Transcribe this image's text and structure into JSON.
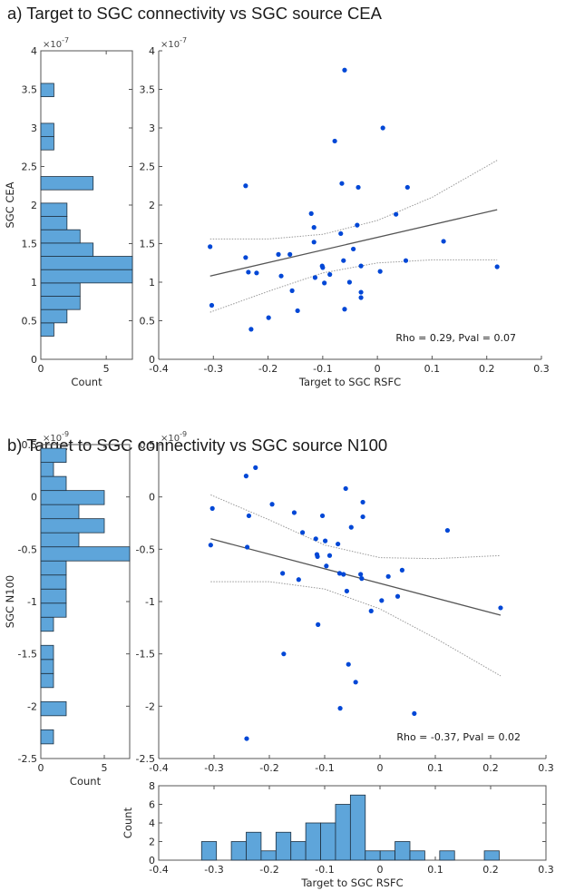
{
  "panels": {
    "a": {
      "title": "a) Target to SGC connectivity  vs SGC source CEA"
    },
    "b": {
      "title": "b) Target to SGC connectivity vs SGC source N100"
    }
  },
  "colors": {
    "point": "#0047d6",
    "bar_fill": "#5ea5da",
    "bar_edge": "#1e3040",
    "axis": "#555555",
    "fit_line": "#555555",
    "ci_line": "#999999"
  },
  "chart_data": [
    {
      "id": "a_hist_y",
      "type": "bar",
      "orientation": "horizontal",
      "title": "",
      "xlabel": "Count",
      "ylabel": "SGC CEA",
      "y_multiplier": "×10^-7",
      "xlim": [
        0,
        7
      ],
      "ylim": [
        0,
        4
      ],
      "xticks": [
        "0",
        "5"
      ],
      "yticks": [
        "0",
        "0.5",
        "1",
        "1.5",
        "2",
        "2.5",
        "3",
        "3.5",
        "4"
      ],
      "bin_width": 0.1725,
      "bin_edges_start": 0.3,
      "counts": [
        1,
        2,
        3,
        3,
        7,
        7,
        4,
        3,
        2,
        2,
        0,
        4,
        0,
        0,
        1,
        1,
        0,
        0,
        1
      ]
    },
    {
      "id": "a_scatter",
      "type": "scatter",
      "title": "",
      "xlabel": "Target to SGC RSFC",
      "ylabel": "",
      "y_multiplier": "×10^-7",
      "xlim": [
        -0.4,
        0.3
      ],
      "ylim": [
        0,
        4
      ],
      "xticks": [
        "-0.4",
        "-0.3",
        "-0.2",
        "-0.1",
        "0",
        "0.1",
        "0.2",
        "0.3"
      ],
      "yticks": [
        "0",
        "0.5",
        "1",
        "1.5",
        "2",
        "2.5",
        "3",
        "3.5",
        "4"
      ],
      "points": [
        [
          -0.306,
          1.46
        ],
        [
          -0.303,
          0.7
        ],
        [
          -0.241,
          1.32
        ],
        [
          -0.236,
          1.13
        ],
        [
          -0.231,
          0.39
        ],
        [
          -0.221,
          1.12
        ],
        [
          -0.199,
          0.54
        ],
        [
          -0.181,
          1.36
        ],
        [
          -0.176,
          1.08
        ],
        [
          -0.16,
          1.36
        ],
        [
          -0.156,
          0.89
        ],
        [
          -0.146,
          0.63
        ],
        [
          -0.121,
          1.89
        ],
        [
          -0.116,
          1.71
        ],
        [
          -0.116,
          1.52
        ],
        [
          -0.114,
          1.06
        ],
        [
          -0.101,
          1.21
        ],
        [
          -0.1,
          1.19
        ],
        [
          -0.097,
          0.99
        ],
        [
          -0.087,
          1.1
        ],
        [
          -0.067,
          1.63
        ],
        [
          -0.062,
          1.28
        ],
        [
          -0.06,
          0.65
        ],
        [
          -0.051,
          1.0
        ],
        [
          -0.044,
          1.43
        ],
        [
          -0.037,
          1.74
        ],
        [
          -0.03,
          0.87
        ],
        [
          -0.03,
          0.8
        ],
        [
          -0.03,
          1.21
        ],
        [
          0.005,
          1.14
        ],
        [
          0.034,
          1.88
        ],
        [
          0.052,
          1.28
        ],
        [
          0.121,
          1.53
        ],
        [
          0.219,
          1.2
        ],
        [
          -0.241,
          2.25
        ],
        [
          -0.078,
          2.83
        ],
        [
          -0.065,
          2.28
        ],
        [
          -0.035,
          2.23
        ],
        [
          0.01,
          3.0
        ],
        [
          0.055,
          2.23
        ],
        [
          -0.06,
          3.75
        ]
      ],
      "fit_line": {
        "x": [
          -0.306,
          0.219
        ],
        "y": [
          1.08,
          1.94
        ]
      },
      "ci_upper": {
        "x": [
          -0.306,
          -0.2,
          -0.1,
          0.0,
          0.1,
          0.219
        ],
        "y": [
          1.56,
          1.56,
          1.62,
          1.8,
          2.1,
          2.58
        ]
      },
      "ci_lower": {
        "x": [
          -0.306,
          -0.2,
          -0.1,
          0.0,
          0.1,
          0.219
        ],
        "y": [
          0.61,
          0.88,
          1.12,
          1.25,
          1.29,
          1.29
        ]
      },
      "annotation": "Rho = 0.29, Pval = 0.07"
    },
    {
      "id": "b_hist_y",
      "type": "bar",
      "orientation": "horizontal",
      "title": "",
      "xlabel": "Count",
      "ylabel": "SGC N100",
      "y_multiplier": "×10^-9",
      "xlim": [
        0,
        7
      ],
      "ylim": [
        -2.5,
        0.5
      ],
      "xticks": [
        "0",
        "5"
      ],
      "yticks": [
        "-2.5",
        "-2",
        "-1.5",
        "-1",
        "-0.5",
        "0",
        "0.5"
      ],
      "bin_width": 0.1345,
      "bin_edges_start": -2.36,
      "counts": [
        1,
        0,
        2,
        0,
        1,
        1,
        1,
        0,
        1,
        2,
        2,
        2,
        2,
        7,
        3,
        5,
        3,
        5,
        2,
        1,
        2
      ]
    },
    {
      "id": "b_scatter",
      "type": "scatter",
      "title": "",
      "xlabel": "",
      "ylabel": "",
      "y_multiplier": "×10^-9",
      "xlim": [
        -0.4,
        0.3
      ],
      "ylim": [
        -2.5,
        0.5
      ],
      "xticks": [
        "-0.4",
        "-0.3",
        "-0.2",
        "-0.1",
        "0",
        "0.1",
        "0.2",
        "0.3"
      ],
      "yticks": [
        "-2.5",
        "-2",
        "-1.5",
        "-1",
        "-0.5",
        "0",
        "0.5"
      ],
      "points": [
        [
          -0.306,
          -0.46
        ],
        [
          -0.303,
          -0.11
        ],
        [
          -0.242,
          0.2
        ],
        [
          -0.241,
          -2.31
        ],
        [
          -0.24,
          -0.48
        ],
        [
          -0.237,
          -0.18
        ],
        [
          -0.225,
          0.28
        ],
        [
          -0.195,
          -0.07
        ],
        [
          -0.176,
          -0.73
        ],
        [
          -0.174,
          -1.5
        ],
        [
          -0.155,
          -0.15
        ],
        [
          -0.147,
          -0.79
        ],
        [
          -0.14,
          -0.34
        ],
        [
          -0.116,
          -0.4
        ],
        [
          -0.114,
          -0.55
        ],
        [
          -0.113,
          -0.57
        ],
        [
          -0.112,
          -1.22
        ],
        [
          -0.104,
          -0.18
        ],
        [
          -0.099,
          -0.42
        ],
        [
          -0.097,
          -0.66
        ],
        [
          -0.091,
          -0.56
        ],
        [
          -0.076,
          -0.45
        ],
        [
          -0.073,
          -0.73
        ],
        [
          -0.072,
          -2.02
        ],
        [
          -0.066,
          -0.74
        ],
        [
          -0.062,
          0.08
        ],
        [
          -0.06,
          -0.9
        ],
        [
          -0.057,
          -1.6
        ],
        [
          -0.052,
          -0.29
        ],
        [
          -0.044,
          -1.77
        ],
        [
          -0.035,
          -0.74
        ],
        [
          -0.033,
          -0.78
        ],
        [
          -0.031,
          -0.05
        ],
        [
          -0.031,
          -0.19
        ],
        [
          -0.016,
          -1.09
        ],
        [
          0.003,
          -0.99
        ],
        [
          0.015,
          -0.76
        ],
        [
          0.032,
          -0.95
        ],
        [
          0.04,
          -0.7
        ],
        [
          0.062,
          -2.07
        ],
        [
          0.122,
          -0.32
        ],
        [
          0.218,
          -1.06
        ]
      ],
      "fit_line": {
        "x": [
          -0.306,
          0.218
        ],
        "y": [
          -0.4,
          -1.13
        ]
      },
      "ci_upper": {
        "x": [
          -0.306,
          -0.2,
          -0.1,
          0.0,
          0.1,
          0.218
        ],
        "y": [
          0.02,
          -0.22,
          -0.46,
          -0.58,
          -0.59,
          -0.56
        ]
      },
      "ci_lower": {
        "x": [
          -0.306,
          -0.2,
          -0.1,
          0.0,
          0.1,
          0.218
        ],
        "y": [
          -0.81,
          -0.81,
          -0.88,
          -1.07,
          -1.35,
          -1.71
        ]
      },
      "annotation": "Rho = -0.37, Pval = 0.02"
    },
    {
      "id": "b_hist_x",
      "type": "bar",
      "orientation": "vertical",
      "title": "",
      "xlabel": "Target to SGC RSFC",
      "ylabel": "Count",
      "xlim": [
        -0.4,
        0.3
      ],
      "ylim": [
        0,
        8
      ],
      "xticks": [
        "-0.4",
        "-0.3",
        "-0.2",
        "-0.1",
        "0",
        "0.1",
        "0.2",
        "0.3"
      ],
      "yticks": [
        "0",
        "2",
        "4",
        "6",
        "8"
      ],
      "bin_width": 0.0269,
      "bin_edges_start": -0.3225,
      "counts": [
        2,
        0,
        2,
        3,
        1,
        3,
        2,
        4,
        4,
        6,
        7,
        1,
        1,
        2,
        1,
        0,
        1,
        0,
        0,
        1
      ]
    }
  ]
}
